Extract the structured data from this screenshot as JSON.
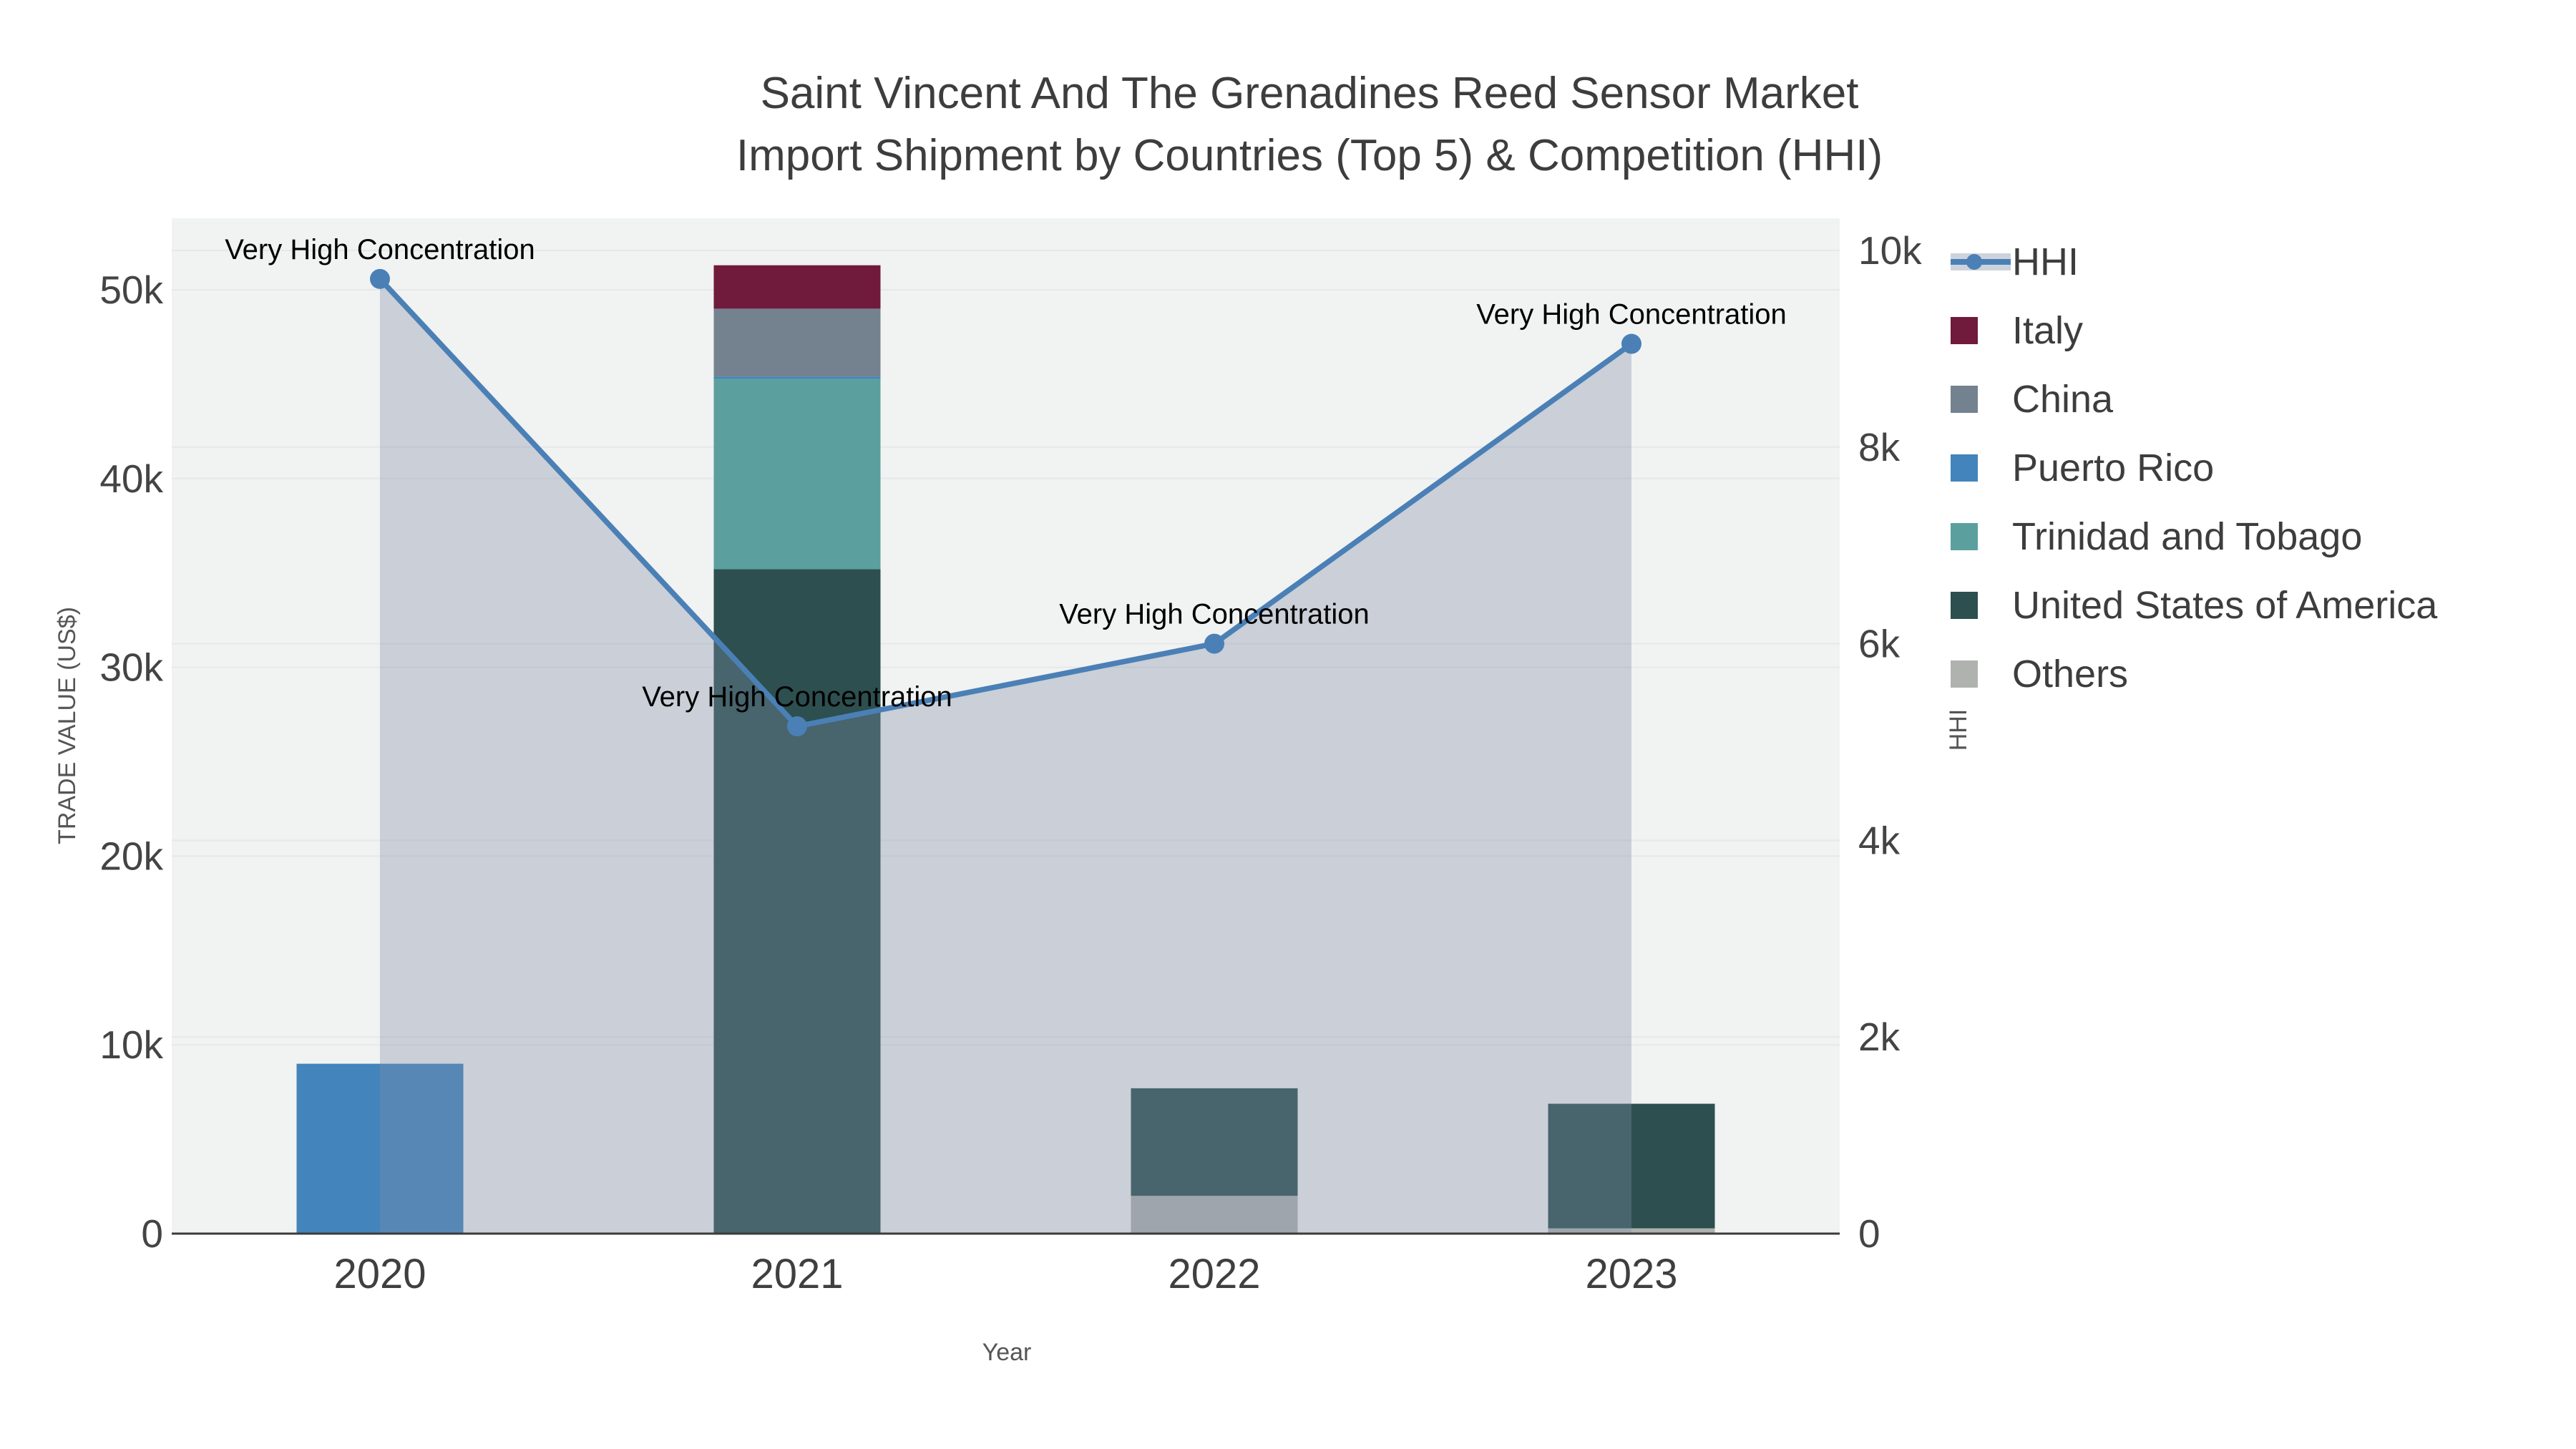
{
  "title": {
    "line1": "Saint Vincent And The Grenadines Reed Sensor Market",
    "line2": "Import Shipment by Countries (Top 5) & Competition (HHI)"
  },
  "axes": {
    "x_title": "Year",
    "y_left_title": "TRADE VALUE (US$)",
    "y_right_title": "HHI",
    "x_ticks": [
      "2020",
      "2021",
      "2022",
      "2023"
    ],
    "y_left_ticks": [
      {
        "label": "0",
        "value": 0
      },
      {
        "label": "10k",
        "value": 10000
      },
      {
        "label": "20k",
        "value": 20000
      },
      {
        "label": "30k",
        "value": 30000
      },
      {
        "label": "40k",
        "value": 40000
      },
      {
        "label": "50k",
        "value": 50000
      }
    ],
    "y_right_ticks": [
      {
        "label": "0",
        "value": 0
      },
      {
        "label": "2k",
        "value": 2000
      },
      {
        "label": "4k",
        "value": 4000
      },
      {
        "label": "6k",
        "value": 6000
      },
      {
        "label": "8k",
        "value": 8000
      },
      {
        "label": "10k",
        "value": 10000
      }
    ]
  },
  "chart_data": {
    "type": "bar",
    "mode": "stacked-bars-with-line",
    "title": "Saint Vincent And The Grenadines Reed Sensor Market Import Shipment by Countries (Top 5) & Competition (HHI)",
    "xlabel": "Year",
    "ylabel": "TRADE VALUE (US$)",
    "ylabel_right": "HHI",
    "categories": [
      "2020",
      "2021",
      "2022",
      "2023"
    ],
    "ylim_left": [
      0,
      53800
    ],
    "ylim_right": [
      0,
      10330
    ],
    "grid": true,
    "legend_position": "right",
    "series": [
      {
        "name": "Others",
        "color": "#b0b2af",
        "values": [
          0,
          0,
          2000,
          280
        ]
      },
      {
        "name": "United States of America",
        "color": "#2d4f4f",
        "values": [
          0,
          35200,
          5700,
          6600
        ]
      },
      {
        "name": "Trinidad and Tobago",
        "color": "#5ba09f",
        "values": [
          0,
          10100,
          0,
          0
        ]
      },
      {
        "name": "Puerto Rico",
        "color": "#4384bc",
        "values": [
          9000,
          100,
          0,
          0
        ]
      },
      {
        "name": "China",
        "color": "#74828f",
        "values": [
          0,
          3600,
          0,
          0
        ]
      },
      {
        "name": "Italy",
        "color": "#701a3c",
        "values": [
          0,
          2300,
          0,
          0
        ]
      }
    ],
    "line": {
      "name": "HHI",
      "axis": "right",
      "color": "#4a80b5",
      "area_fill": "rgba(125,142,168,0.34)",
      "values": [
        9710,
        5160,
        6000,
        9050
      ]
    },
    "annotations": [
      {
        "text": "Very High Concentration",
        "x": "2020"
      },
      {
        "text": "Very High Concentration",
        "x": "2021"
      },
      {
        "text": "Very High Concentration",
        "x": "2022"
      },
      {
        "text": "Very High Concentration",
        "x": "2023"
      }
    ]
  },
  "legend": {
    "items": [
      {
        "label": "HHI",
        "color": "#4a80b5",
        "glyph": "line"
      },
      {
        "label": "Italy",
        "color": "#701a3c",
        "glyph": "box"
      },
      {
        "label": "China",
        "color": "#74828f",
        "glyph": "box"
      },
      {
        "label": "Puerto Rico",
        "color": "#4384bc",
        "glyph": "box"
      },
      {
        "label": "Trinidad and Tobago",
        "color": "#5ba09f",
        "glyph": "box"
      },
      {
        "label": "United States of America",
        "color": "#2d4f4f",
        "glyph": "box"
      },
      {
        "label": "Others",
        "color": "#b0b2af",
        "glyph": "box"
      }
    ]
  },
  "style": {
    "plot_bg": "#f1f2f2",
    "grid_color": "#e6e8e9",
    "axis_line_color": "#3b3b3b"
  }
}
